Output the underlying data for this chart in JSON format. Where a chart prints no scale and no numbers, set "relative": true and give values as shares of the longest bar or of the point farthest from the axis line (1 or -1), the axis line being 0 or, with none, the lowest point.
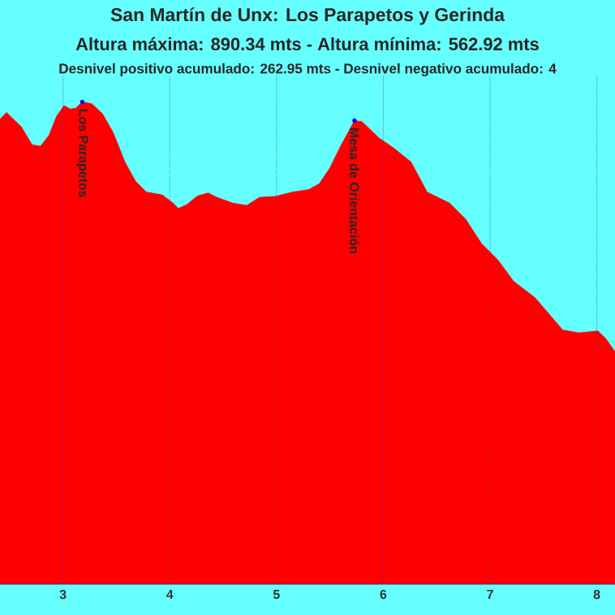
{
  "chart_data": {
    "type": "area",
    "title": "San Martín de Unx: Los Parapetos y Gerinda",
    "subtitle": "Altura máxima: 890.34 mts - Altura mínima: 562.92 mts",
    "annotations": [
      "Desnivel positivo acumulado: 262.95 mts - Desnivel negativo acumulado: 4",
      {
        "text": "Los Parapetos",
        "x": 3.18,
        "y": 1.0
      },
      {
        "text": "Mesa de Orientación",
        "x": 5.73,
        "y": 0.961
      }
    ],
    "relative": true,
    "color": "#ff0000",
    "xlim": [
      2.41,
      8.17
    ],
    "xticks": [
      3,
      4,
      5,
      6,
      7,
      8
    ],
    "grid": "x",
    "tick_labels": "x",
    "x": [
      2.41,
      2.47,
      2.61,
      2.71,
      2.79,
      2.87,
      2.94,
      3.01,
      3.07,
      3.12,
      3.18,
      3.27,
      3.37,
      3.47,
      3.58,
      3.68,
      3.78,
      3.93,
      4.03,
      4.08,
      4.16,
      4.26,
      4.36,
      4.44,
      4.59,
      4.72,
      4.84,
      4.99,
      5.15,
      5.3,
      5.4,
      5.5,
      5.6,
      5.73,
      5.8,
      5.96,
      6.11,
      6.26,
      6.41,
      6.62,
      6.77,
      6.92,
      7.07,
      7.22,
      7.42,
      7.68,
      7.83,
      8.01,
      8.08,
      8.17
    ],
    "values": [
      0.964,
      0.978,
      0.948,
      0.911,
      0.908,
      0.931,
      0.97,
      0.992,
      0.985,
      0.987,
      1.0,
      0.996,
      0.975,
      0.936,
      0.875,
      0.835,
      0.813,
      0.807,
      0.79,
      0.779,
      0.787,
      0.805,
      0.811,
      0.802,
      0.79,
      0.785,
      0.802,
      0.804,
      0.813,
      0.818,
      0.83,
      0.863,
      0.908,
      0.961,
      0.959,
      0.925,
      0.902,
      0.875,
      0.813,
      0.79,
      0.757,
      0.706,
      0.673,
      0.628,
      0.594,
      0.527,
      0.521,
      0.525,
      0.51,
      0.482
    ]
  }
}
